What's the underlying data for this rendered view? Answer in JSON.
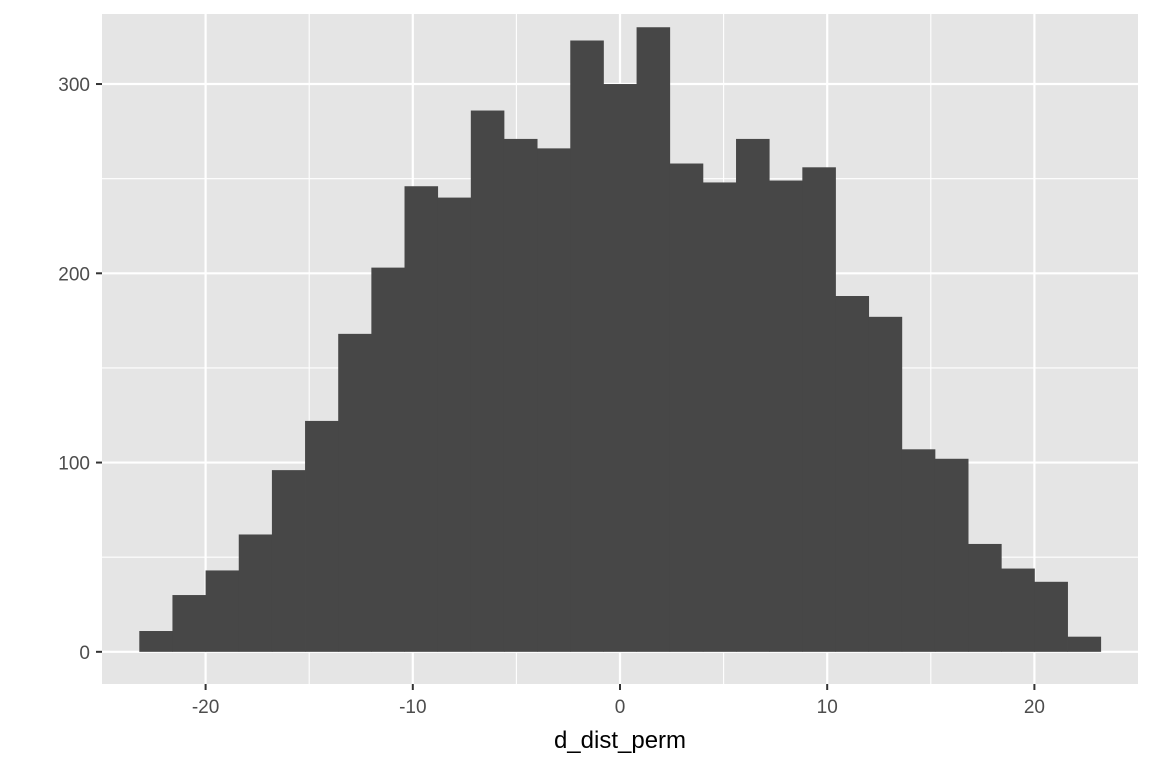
{
  "chart_data": {
    "type": "bar",
    "xlabel": "d_dist_perm",
    "ylabel": "",
    "title": "",
    "xlim": [
      -25,
      25
    ],
    "ylim": [
      -17,
      337
    ],
    "x_ticks": [
      -20,
      -10,
      0,
      10,
      20
    ],
    "y_ticks": [
      0,
      100,
      200,
      300
    ],
    "grid": true,
    "bin_start": -23.2,
    "bin_width": 1.6,
    "values": [
      11,
      30,
      43,
      62,
      96,
      122,
      168,
      203,
      246,
      240,
      286,
      271,
      266,
      323,
      300,
      330,
      258,
      248,
      271,
      249,
      256,
      188,
      177,
      107,
      102,
      57,
      44,
      37,
      8
    ],
    "colors": {
      "bar": "#474747",
      "panel": "#e5e5e5",
      "grid_major": "#ffffff",
      "tick": "#333333"
    }
  }
}
